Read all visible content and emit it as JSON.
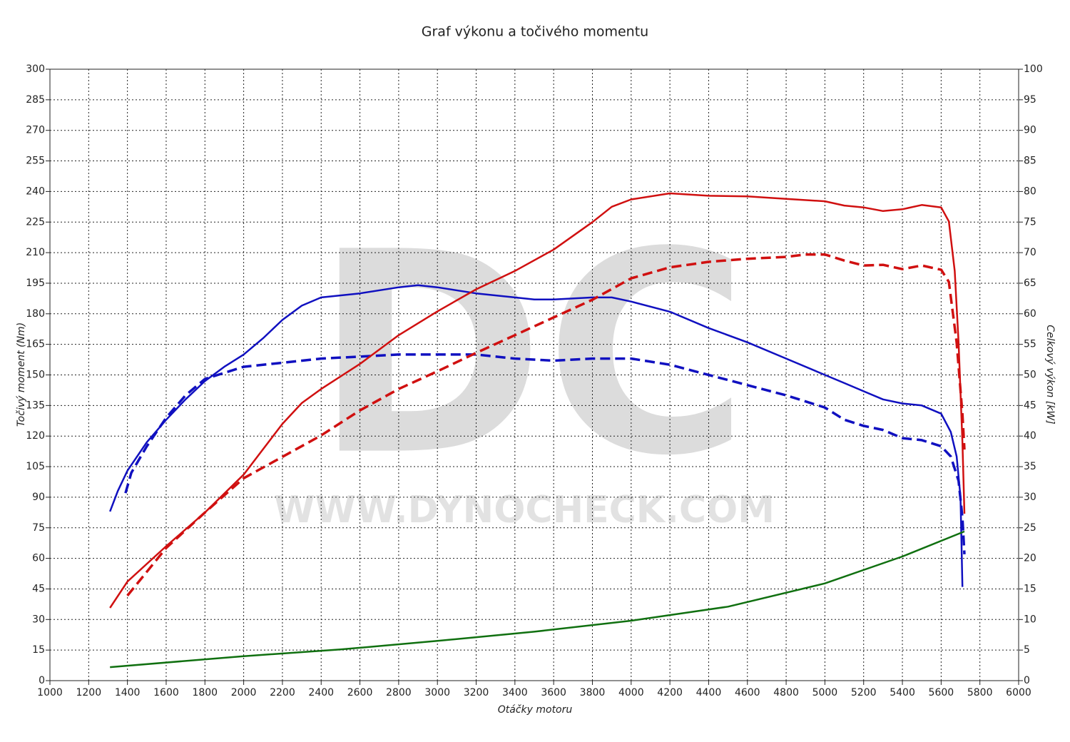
{
  "chart_data": {
    "type": "line",
    "title": "Graf výkonu a točivého momentu",
    "xlabel": "Otáčky motoru",
    "ylabel": "Točivý moment (Nm)",
    "y2label": "Celkový výkon [kW]",
    "watermark": {
      "logo": "DC",
      "url": "WWW.DYNOCHECK.COM"
    },
    "xlim": [
      1000,
      6000
    ],
    "xticks": [
      1000,
      1200,
      1400,
      1600,
      1800,
      2000,
      2200,
      2400,
      2600,
      2800,
      3000,
      3200,
      3400,
      3600,
      3800,
      4000,
      4200,
      4400,
      4600,
      4800,
      5000,
      5200,
      5400,
      5600,
      5800,
      6000
    ],
    "ylim": [
      0,
      300
    ],
    "yticks": [
      0,
      15,
      30,
      45,
      60,
      75,
      90,
      105,
      120,
      135,
      150,
      165,
      180,
      195,
      210,
      225,
      240,
      255,
      270,
      285,
      300
    ],
    "y2lim": [
      0,
      100
    ],
    "y2ticks": [
      0,
      5,
      10,
      15,
      20,
      25,
      30,
      35,
      40,
      45,
      50,
      55,
      60,
      65,
      70,
      75,
      80,
      85,
      90,
      95,
      100
    ],
    "grid": true,
    "series": [
      {
        "color": "#1010c0",
        "dash": false,
        "axis": "y",
        "x": [
          1310,
          1350,
          1400,
          1500,
          1600,
          1700,
          1800,
          1900,
          2000,
          2100,
          2200,
          2300,
          2400,
          2600,
          2800,
          2900,
          3000,
          3200,
          3400,
          3500,
          3600,
          3800,
          3900,
          4000,
          4200,
          4400,
          4600,
          4800,
          5000,
          5100,
          5200,
          5300,
          5400,
          5500,
          5600,
          5650,
          5680,
          5700,
          5710
        ],
        "values": [
          83,
          93,
          103,
          117,
          128,
          138,
          147,
          154,
          160,
          168,
          177,
          184,
          188,
          190,
          193,
          194,
          193,
          190,
          188,
          187,
          187,
          188,
          188,
          186,
          181,
          173,
          166,
          158,
          150,
          146,
          142,
          138,
          136,
          135,
          131,
          122,
          110,
          90,
          46
        ]
      },
      {
        "color": "#1010c0",
        "dash": true,
        "axis": "y",
        "x": [
          1390,
          1420,
          1500,
          1600,
          1700,
          1800,
          1900,
          2000,
          2200,
          2400,
          2600,
          2800,
          3000,
          3200,
          3400,
          3600,
          3800,
          4000,
          4200,
          4400,
          4600,
          4800,
          5000,
          5100,
          5200,
          5300,
          5400,
          5500,
          5600,
          5650,
          5690,
          5710,
          5720
        ],
        "values": [
          92,
          102,
          115,
          129,
          140,
          148,
          151,
          154,
          156,
          158,
          159,
          160,
          160,
          160,
          158,
          157,
          158,
          158,
          155,
          150,
          145,
          140,
          134,
          128,
          125,
          123,
          119,
          118,
          115,
          110,
          98,
          80,
          62
        ]
      },
      {
        "color": "#d01010",
        "dash": false,
        "axis": "y2",
        "x": [
          1310,
          1400,
          1600,
          1800,
          2000,
          2200,
          2300,
          2400,
          2600,
          2800,
          3000,
          3200,
          3400,
          3600,
          3800,
          3900,
          4000,
          4200,
          4400,
          4600,
          4800,
          5000,
          5100,
          5200,
          5300,
          5400,
          5500,
          5600,
          5640,
          5670,
          5690,
          5710,
          5720
        ],
        "values": [
          11.9,
          16.2,
          22,
          27.5,
          33.7,
          42,
          45.4,
          47.7,
          51.8,
          56.5,
          60.4,
          64,
          67,
          70.5,
          75,
          77.5,
          78.7,
          79.7,
          79.3,
          79.2,
          78.8,
          78.4,
          77.7,
          77.4,
          76.8,
          77.1,
          77.8,
          77.4,
          75.1,
          67,
          55.3,
          39,
          27.3
        ]
      },
      {
        "color": "#d01010",
        "dash": true,
        "axis": "y2",
        "x": [
          1400,
          1600,
          1800,
          2000,
          2200,
          2400,
          2600,
          2800,
          3000,
          3200,
          3400,
          3600,
          3800,
          4000,
          4200,
          4400,
          4600,
          4800,
          4900,
          5000,
          5100,
          5200,
          5300,
          5400,
          5500,
          5600,
          5640,
          5680,
          5710,
          5720
        ],
        "values": [
          13.9,
          21.7,
          27.5,
          33.1,
          36.6,
          40.1,
          44.2,
          47.7,
          50.6,
          53.6,
          56.5,
          59.4,
          62.3,
          65.8,
          67.6,
          68.5,
          69,
          69.3,
          69.7,
          69.7,
          68.7,
          67.9,
          68,
          67.3,
          67.9,
          67.2,
          65.2,
          55.3,
          43.6,
          37.8
        ]
      },
      {
        "color": "#107010",
        "dash": false,
        "axis": "y2",
        "x": [
          1310,
          2000,
          2500,
          3000,
          3500,
          4000,
          4500,
          5000,
          5400,
          5720
        ],
        "values": [
          2.2,
          4,
          5.1,
          6.5,
          8,
          9.8,
          12.1,
          15.9,
          20.3,
          24.4
        ]
      }
    ]
  }
}
